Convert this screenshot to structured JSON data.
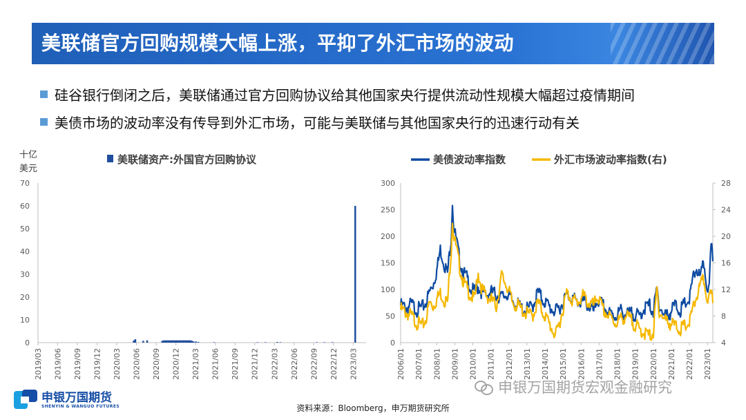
{
  "title": "美联储官方回购规模大幅上涨，平抑了外汇市场的波动",
  "bullets": [
    "硅谷银行倒闭之后，美联储通过官方回购协议给其他国家央行提供流动性规模大幅超过疫情期间",
    "美债市场的波动率没有传导到外汇市场，可能与美联储与其他国家央行的迅速行动有关"
  ],
  "source": "资料来源：Bloomberg，申万期货研究所",
  "logo": {
    "cn": "申银万国期货",
    "en": "SHENYIN & WANGUO FUTURES"
  },
  "watermark": "申银万国期货宏观金融研究",
  "colors": {
    "title_bar": "#1f5fb8",
    "bullet": "#5b9bd5",
    "bar": "#1f4e9e",
    "series_blue": "#0d4aa1",
    "series_gold": "#f5b800"
  },
  "chart_data": [
    {
      "type": "bar",
      "unit_label": [
        "十亿",
        "美元"
      ],
      "legend": "美联储资产:外国官方回购协议",
      "ylim": [
        0,
        70
      ],
      "yticks": [
        0,
        10,
        20,
        30,
        40,
        50,
        60,
        70
      ],
      "xticks": [
        "2019/03",
        "2019/06",
        "2019/09",
        "2019/12",
        "2020/03",
        "2020/06",
        "2020/09",
        "2020/12",
        "2021/03",
        "2021/06",
        "2021/09",
        "2021/12",
        "2022/03",
        "2022/06",
        "2022/09",
        "2022/12",
        "2023/03"
      ],
      "x_start": 2019.167,
      "x_end": 2023.33,
      "points": [
        [
          2020.38,
          1.0
        ],
        [
          2020.4,
          1.5
        ],
        [
          2020.5,
          0.8
        ],
        [
          2020.55,
          1.0
        ],
        [
          2020.74,
          0.8
        ],
        [
          2020.76,
          1.0
        ],
        [
          2020.78,
          1.0
        ],
        [
          2020.8,
          1.0
        ],
        [
          2020.82,
          1.0
        ],
        [
          2020.84,
          1.0
        ],
        [
          2020.86,
          1.0
        ],
        [
          2020.88,
          1.0
        ],
        [
          2020.9,
          1.0
        ],
        [
          2020.92,
          1.0
        ],
        [
          2020.94,
          1.0
        ],
        [
          2020.96,
          1.0
        ],
        [
          2020.98,
          1.0
        ],
        [
          2021.0,
          1.0
        ],
        [
          2021.02,
          1.0
        ],
        [
          2021.04,
          1.0
        ],
        [
          2021.06,
          1.0
        ],
        [
          2021.08,
          1.0
        ],
        [
          2021.1,
          1.0
        ],
        [
          2021.12,
          0.8
        ],
        [
          2021.14,
          0.5
        ],
        [
          2021.17,
          0.5
        ],
        [
          2021.2,
          0.3
        ],
        [
          2021.4,
          0.2
        ],
        [
          2021.95,
          0.2
        ],
        [
          2022.05,
          0.2
        ],
        [
          2022.2,
          0.3
        ],
        [
          2022.24,
          0.2
        ],
        [
          2022.7,
          0.2
        ],
        [
          2022.8,
          0.2
        ],
        [
          2022.9,
          0.2
        ],
        [
          2023.19,
          60.0
        ]
      ]
    },
    {
      "type": "line",
      "legend": [
        "美债波动率指数",
        "外汇市场波动率指数(右)"
      ],
      "ylim_left": [
        0,
        300
      ],
      "yticks_left": [
        0,
        50,
        100,
        150,
        200,
        250,
        300
      ],
      "ylim_right": [
        4,
        28
      ],
      "yticks_right": [
        4,
        8,
        12,
        16,
        20,
        24,
        28
      ],
      "xticks": [
        "2006/01",
        "2007/01",
        "2008/01",
        "2009/01",
        "2010/01",
        "2011/01",
        "2012/01",
        "2013/01",
        "2014/01",
        "2015/01",
        "2016/01",
        "2017/01",
        "2018/01",
        "2019/01",
        "2020/01",
        "2021/01",
        "2022/01",
        "2023/01"
      ],
      "x_start": 2006.0,
      "x_end": 2023.3,
      "series": [
        {
          "name": "美债波动率指数",
          "axis": "left",
          "points": [
            [
              2006.0,
              70
            ],
            [
              2006.3,
              65
            ],
            [
              2006.6,
              72
            ],
            [
              2006.9,
              62
            ],
            [
              2007.2,
              66
            ],
            [
              2007.4,
              75
            ],
            [
              2007.6,
              95
            ],
            [
              2007.8,
              110
            ],
            [
              2008.0,
              135
            ],
            [
              2008.2,
              175
            ],
            [
              2008.4,
              150
            ],
            [
              2008.6,
              130
            ],
            [
              2008.8,
              200
            ],
            [
              2008.87,
              265
            ],
            [
              2008.95,
              215
            ],
            [
              2009.1,
              190
            ],
            [
              2009.3,
              150
            ],
            [
              2009.5,
              130
            ],
            [
              2009.7,
              120
            ],
            [
              2009.9,
              100
            ],
            [
              2010.1,
              95
            ],
            [
              2010.3,
              105
            ],
            [
              2010.5,
              95
            ],
            [
              2010.8,
              90
            ],
            [
              2011.0,
              95
            ],
            [
              2011.3,
              90
            ],
            [
              2011.6,
              85
            ],
            [
              2011.9,
              92
            ],
            [
              2012.2,
              78
            ],
            [
              2012.5,
              70
            ],
            [
              2012.9,
              60
            ],
            [
              2013.3,
              68
            ],
            [
              2013.6,
              95
            ],
            [
              2013.9,
              80
            ],
            [
              2014.3,
              65
            ],
            [
              2014.6,
              58
            ],
            [
              2014.9,
              70
            ],
            [
              2015.2,
              90
            ],
            [
              2015.5,
              85
            ],
            [
              2015.8,
              75
            ],
            [
              2016.1,
              78
            ],
            [
              2016.4,
              70
            ],
            [
              2016.7,
              58
            ],
            [
              2016.9,
              80
            ],
            [
              2017.2,
              70
            ],
            [
              2017.5,
              55
            ],
            [
              2017.9,
              50
            ],
            [
              2018.2,
              60
            ],
            [
              2018.5,
              52
            ],
            [
              2018.9,
              55
            ],
            [
              2019.2,
              48
            ],
            [
              2019.5,
              65
            ],
            [
              2019.8,
              70
            ],
            [
              2020.0,
              58
            ],
            [
              2020.2,
              100
            ],
            [
              2020.3,
              75
            ],
            [
              2020.6,
              50
            ],
            [
              2020.9,
              55
            ],
            [
              2021.2,
              70
            ],
            [
              2021.5,
              60
            ],
            [
              2021.8,
              75
            ],
            [
              2022.0,
              80
            ],
            [
              2022.2,
              120
            ],
            [
              2022.4,
              140
            ],
            [
              2022.6,
              120
            ],
            [
              2022.8,
              150
            ],
            [
              2022.95,
              110
            ],
            [
              2023.1,
              100
            ],
            [
              2023.2,
              180
            ],
            [
              2023.3,
              160
            ]
          ]
        },
        {
          "name": "外汇市场波动率指数(右)",
          "axis": "right",
          "points": [
            [
              2006.0,
              9.0
            ],
            [
              2006.3,
              8.5
            ],
            [
              2006.6,
              8.0
            ],
            [
              2006.9,
              7.0
            ],
            [
              2007.2,
              6.5
            ],
            [
              2007.4,
              7.5
            ],
            [
              2007.6,
              10.0
            ],
            [
              2007.8,
              9.5
            ],
            [
              2008.0,
              10.5
            ],
            [
              2008.2,
              11.5
            ],
            [
              2008.4,
              10.5
            ],
            [
              2008.6,
              10.0
            ],
            [
              2008.8,
              18.0
            ],
            [
              2008.87,
              22.5
            ],
            [
              2008.95,
              20.0
            ],
            [
              2009.1,
              18.0
            ],
            [
              2009.3,
              15.0
            ],
            [
              2009.5,
              13.0
            ],
            [
              2009.7,
              12.0
            ],
            [
              2009.9,
              11.0
            ],
            [
              2010.1,
              10.5
            ],
            [
              2010.3,
              14.5
            ],
            [
              2010.5,
              12.0
            ],
            [
              2010.8,
              11.0
            ],
            [
              2011.0,
              10.5
            ],
            [
              2011.3,
              9.5
            ],
            [
              2011.6,
              14.0
            ],
            [
              2011.9,
              12.5
            ],
            [
              2012.2,
              10.0
            ],
            [
              2012.5,
              9.5
            ],
            [
              2012.9,
              8.5
            ],
            [
              2013.3,
              8.0
            ],
            [
              2013.6,
              10.0
            ],
            [
              2013.9,
              8.5
            ],
            [
              2014.3,
              6.5
            ],
            [
              2014.6,
              5.0
            ],
            [
              2014.9,
              8.0
            ],
            [
              2015.2,
              11.5
            ],
            [
              2015.5,
              10.5
            ],
            [
              2015.8,
              10.0
            ],
            [
              2016.1,
              11.0
            ],
            [
              2016.4,
              10.0
            ],
            [
              2016.7,
              9.5
            ],
            [
              2016.9,
              11.0
            ],
            [
              2017.2,
              9.0
            ],
            [
              2017.5,
              8.0
            ],
            [
              2017.9,
              7.0
            ],
            [
              2018.2,
              7.5
            ],
            [
              2018.5,
              8.0
            ],
            [
              2018.9,
              7.0
            ],
            [
              2019.2,
              6.0
            ],
            [
              2019.5,
              5.5
            ],
            [
              2019.8,
              5.0
            ],
            [
              2020.0,
              5.5
            ],
            [
              2020.2,
              12.0
            ],
            [
              2020.3,
              9.0
            ],
            [
              2020.6,
              7.5
            ],
            [
              2020.9,
              7.0
            ],
            [
              2021.2,
              6.5
            ],
            [
              2021.5,
              6.0
            ],
            [
              2021.8,
              6.5
            ],
            [
              2022.0,
              7.0
            ],
            [
              2022.2,
              9.0
            ],
            [
              2022.4,
              11.0
            ],
            [
              2022.6,
              12.5
            ],
            [
              2022.8,
              13.5
            ],
            [
              2022.95,
              11.0
            ],
            [
              2023.1,
              10.5
            ],
            [
              2023.2,
              11.0
            ],
            [
              2023.3,
              10.5
            ]
          ]
        }
      ]
    }
  ]
}
